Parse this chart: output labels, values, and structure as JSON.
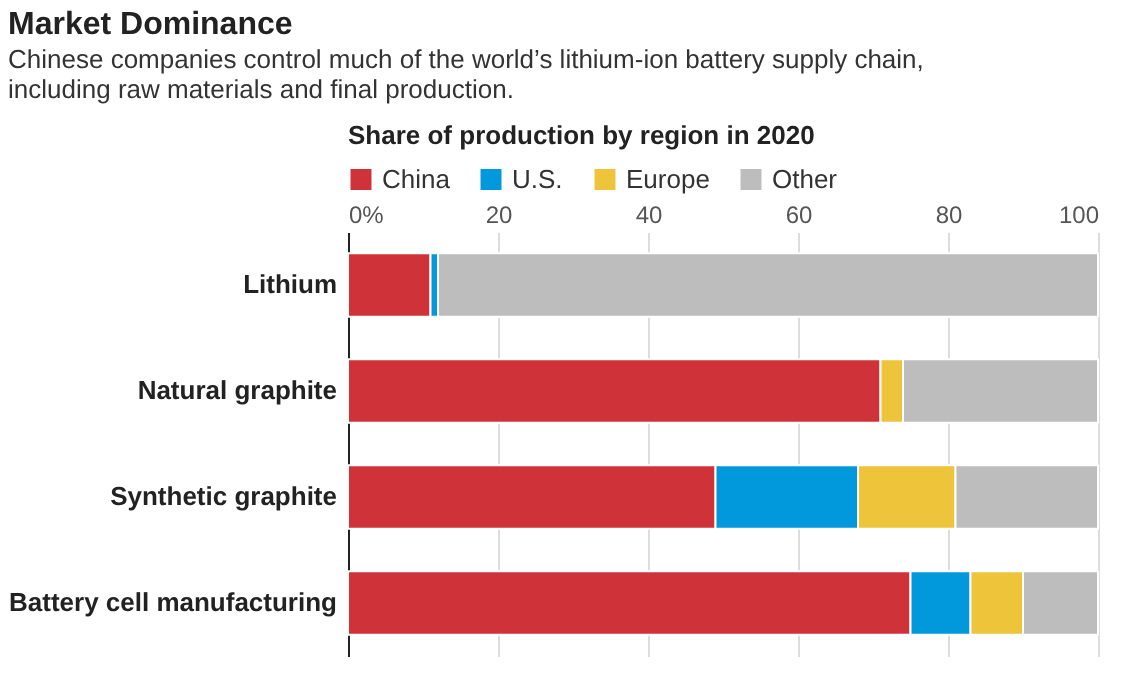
{
  "chart_data": {
    "type": "bar",
    "orientation": "horizontal",
    "stacked": true,
    "title": "Market Dominance",
    "subtitle": "Chinese companies control much of the world’s lithium-ion battery supply chain, including raw materials and final production.",
    "legend_title": "Share of production by region in 2020",
    "categories": [
      "Lithium",
      "Natural graphite",
      "Synthetic graphite",
      "Battery cell manufacturing"
    ],
    "series": [
      {
        "name": "China",
        "color": "#d0323a",
        "values": [
          11,
          71,
          49,
          75
        ]
      },
      {
        "name": "U.S.",
        "color": "#0299dc",
        "values": [
          1,
          null,
          19,
          8
        ]
      },
      {
        "name": "Europe",
        "color": "#eec43a",
        "values": [
          null,
          3,
          13,
          7
        ]
      },
      {
        "name": "Other",
        "color": "#bdbdbd",
        "values": [
          88,
          26,
          19,
          10
        ]
      }
    ],
    "xlim": [
      0,
      100
    ],
    "xticks": [
      {
        "value": 0,
        "label": "0%"
      },
      20,
      40,
      60,
      80,
      100
    ],
    "grid": "x",
    "legend": "top left"
  }
}
